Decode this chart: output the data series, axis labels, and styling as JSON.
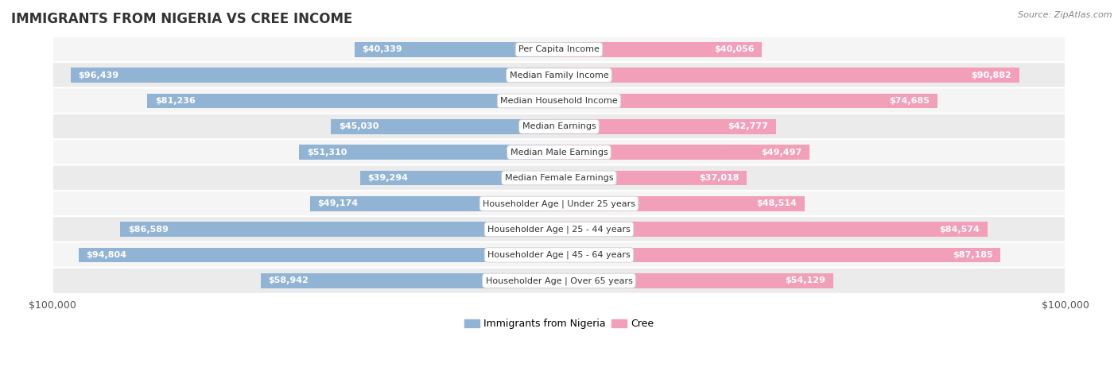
{
  "title": "IMMIGRANTS FROM NIGERIA VS CREE INCOME",
  "source": "Source: ZipAtlas.com",
  "categories": [
    "Per Capita Income",
    "Median Family Income",
    "Median Household Income",
    "Median Earnings",
    "Median Male Earnings",
    "Median Female Earnings",
    "Householder Age | Under 25 years",
    "Householder Age | 25 - 44 years",
    "Householder Age | 45 - 64 years",
    "Householder Age | Over 65 years"
  ],
  "nigeria_values": [
    40339,
    96439,
    81236,
    45030,
    51310,
    39294,
    49174,
    86589,
    94804,
    58942
  ],
  "cree_values": [
    40056,
    90882,
    74685,
    42777,
    49497,
    37018,
    48514,
    84574,
    87185,
    54129
  ],
  "nigeria_labels": [
    "$40,339",
    "$96,439",
    "$81,236",
    "$45,030",
    "$51,310",
    "$39,294",
    "$49,174",
    "$86,589",
    "$94,804",
    "$58,942"
  ],
  "cree_labels": [
    "$40,056",
    "$90,882",
    "$74,685",
    "$42,777",
    "$49,497",
    "$37,018",
    "$48,514",
    "$84,574",
    "$87,185",
    "$54,129"
  ],
  "nigeria_color": "#92b4d4",
  "cree_color": "#f2a0ba",
  "nigeria_color_dark": "#4a86c0",
  "cree_color_dark": "#e8527a",
  "max_value": 100000,
  "x_axis_labels": [
    "$100,000",
    "$100,000"
  ],
  "legend_nigeria": "Immigrants from Nigeria",
  "legend_cree": "Cree",
  "bar_height": 0.58,
  "row_bg_alt": "#ebebeb",
  "row_bg_main": "#f5f5f5",
  "label_color_inside": "#ffffff",
  "label_color_outside": "#555555",
  "inside_threshold": 30000,
  "title_fontsize": 12,
  "label_fontsize": 8,
  "cat_fontsize": 8
}
